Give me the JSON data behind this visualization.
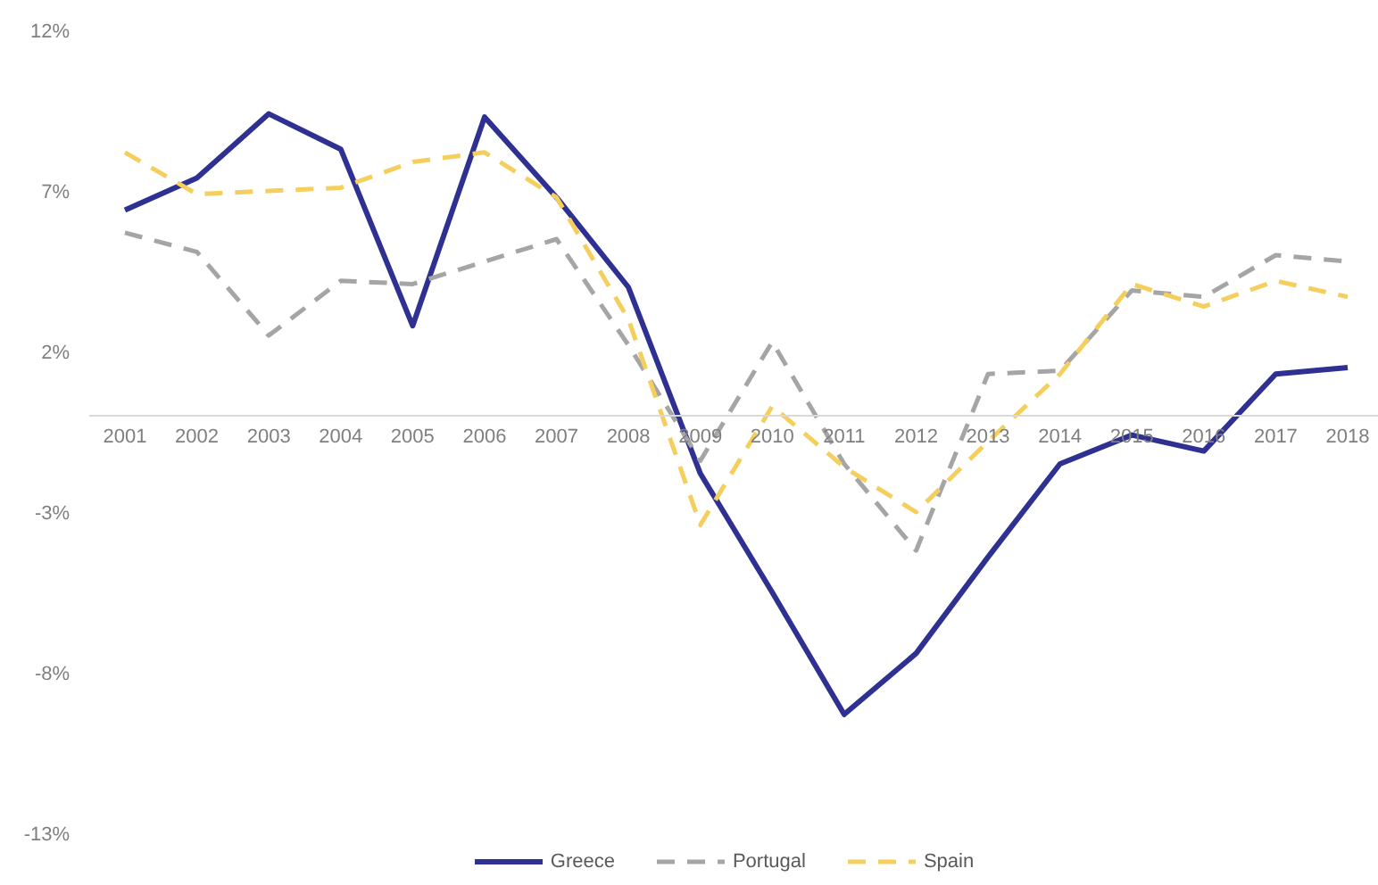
{
  "chart_data": {
    "type": "line",
    "categories": [
      "2001",
      "2002",
      "2003",
      "2004",
      "2005",
      "2006",
      "2007",
      "2008",
      "2009",
      "2010",
      "2011",
      "2012",
      "2013",
      "2014",
      "2015",
      "2016",
      "2017",
      "2018"
    ],
    "series": [
      {
        "name": "Greece",
        "color": "#2e3192",
        "line_style": "solid",
        "values": [
          6.4,
          7.4,
          9.4,
          8.3,
          2.8,
          9.3,
          6.8,
          4.0,
          -1.8,
          -5.5,
          -9.3,
          -7.4,
          -4.4,
          -1.5,
          -0.6,
          -1.1,
          1.3,
          1.5
        ]
      },
      {
        "name": "Portugal",
        "color": "#a5a5a5",
        "line_style": "dashed",
        "values": [
          5.7,
          5.1,
          2.5,
          4.2,
          4.1,
          4.8,
          5.5,
          2.2,
          -1.4,
          2.3,
          -1.5,
          -4.2,
          1.3,
          1.4,
          3.9,
          3.7,
          5.0,
          4.8
        ]
      },
      {
        "name": "Spain",
        "color": "#f4cf5d",
        "line_style": "dashed",
        "values": [
          8.2,
          6.9,
          7.0,
          7.1,
          7.9,
          8.2,
          6.8,
          3.0,
          -3.4,
          0.3,
          -1.6,
          -3.0,
          -0.8,
          1.3,
          4.1,
          3.4,
          4.2,
          3.7
        ]
      }
    ],
    "ylim": [
      -13,
      12
    ],
    "yticks": [
      {
        "value": -13,
        "label": "-13%"
      },
      {
        "value": -8,
        "label": "-8%"
      },
      {
        "value": -3,
        "label": "-3%"
      },
      {
        "value": 2,
        "label": "2%"
      },
      {
        "value": 7,
        "label": "7%"
      },
      {
        "value": 12,
        "label": "12%"
      }
    ],
    "legend": "bottom",
    "marker": "none"
  }
}
